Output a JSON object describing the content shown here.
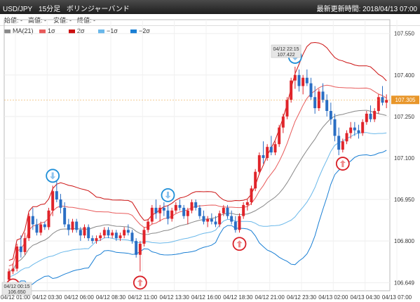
{
  "title": {
    "symbol": "USD/JPY",
    "timeframe": "15分足",
    "indicator": "ボリンジャーバンド"
  },
  "last_update": "最新更新時間: 2018/04/13 07:00",
  "ohlc_labels": [
    "始値: -",
    "高値: -",
    "安値: -",
    "終値: -"
  ],
  "legend": [
    {
      "label": "MA(21)",
      "color": "#888888"
    },
    {
      "label": "1σ",
      "color": "#e85b5b"
    },
    {
      "label": "2σ",
      "color": "#cc1111"
    },
    {
      "label": "−1σ",
      "color": "#6ab8ea"
    },
    {
      "label": "−2σ",
      "color": "#1a7fd4"
    }
  ],
  "colors": {
    "up": "#e0242a",
    "down": "#2a6ec4",
    "ma": "#888888",
    "p1": "#e85b5b",
    "p2": "#cc1111",
    "m1": "#6ab8ea",
    "m2": "#1a7fd4",
    "price_tag": "#e8962a"
  },
  "current_price": "107.305",
  "callouts": [
    {
      "time": "04/12 00:15",
      "price": "106.650"
    },
    {
      "time": "04/12 22:15",
      "price": "107.422"
    }
  ],
  "chart_data": {
    "type": "candlestick",
    "y_ticks": [
      "107.550",
      "107.400",
      "107.250",
      "107.100",
      "106.950",
      "106.800",
      "106.649"
    ],
    "y_tick_values": [
      107.55,
      107.4,
      107.25,
      107.1,
      106.95,
      106.8,
      106.649
    ],
    "x_ticks": [
      "04/12 01:00",
      "04/12 03:30",
      "04/12 06:00",
      "04/12 08:30",
      "04/12 11:00",
      "04/12 13:30",
      "04/12 16:00",
      "04/12 18:30",
      "04/12 21:00",
      "04/12 23:30",
      "04/13 02:00",
      "04/13 04:30",
      "04/13 07:00"
    ],
    "ylim": [
      106.62,
      107.6
    ],
    "candles": [
      [
        106.66,
        106.7,
        106.65,
        106.69
      ],
      [
        106.69,
        106.72,
        106.68,
        106.7
      ],
      [
        106.7,
        106.79,
        106.69,
        106.78
      ],
      [
        106.78,
        106.82,
        106.74,
        106.76
      ],
      [
        106.76,
        106.83,
        106.75,
        106.81
      ],
      [
        106.81,
        106.9,
        106.8,
        106.89
      ],
      [
        106.89,
        106.92,
        106.84,
        106.86
      ],
      [
        106.86,
        106.88,
        106.82,
        106.83
      ],
      [
        106.83,
        106.87,
        106.82,
        106.86
      ],
      [
        106.86,
        106.87,
        106.84,
        106.85
      ],
      [
        106.85,
        106.92,
        106.84,
        106.91
      ],
      [
        106.91,
        107.0,
        106.89,
        106.98
      ],
      [
        106.98,
        107.04,
        106.94,
        106.95
      ],
      [
        106.95,
        106.97,
        106.9,
        106.92
      ],
      [
        106.92,
        106.94,
        106.85,
        106.86
      ],
      [
        106.86,
        106.88,
        106.82,
        106.84
      ],
      [
        106.84,
        106.88,
        106.83,
        106.87
      ],
      [
        106.87,
        106.88,
        106.83,
        106.84
      ],
      [
        106.84,
        106.85,
        106.8,
        106.82
      ],
      [
        106.82,
        106.86,
        106.81,
        106.85
      ],
      [
        106.85,
        106.86,
        106.8,
        106.81
      ],
      [
        106.81,
        106.82,
        106.79,
        106.8
      ],
      [
        106.8,
        106.82,
        106.79,
        106.81
      ],
      [
        106.81,
        106.83,
        106.8,
        106.82
      ],
      [
        106.82,
        106.85,
        106.81,
        106.84
      ],
      [
        106.84,
        106.85,
        106.81,
        106.82
      ],
      [
        106.82,
        106.84,
        106.81,
        106.83
      ],
      [
        106.83,
        106.84,
        106.8,
        106.81
      ],
      [
        106.81,
        106.83,
        106.8,
        106.82
      ],
      [
        106.82,
        106.85,
        106.81,
        106.84
      ],
      [
        106.84,
        106.86,
        106.82,
        106.83
      ],
      [
        106.83,
        106.84,
        106.79,
        106.8
      ],
      [
        106.8,
        106.81,
        106.74,
        106.75
      ],
      [
        106.75,
        106.8,
        106.69,
        106.79
      ],
      [
        106.79,
        106.85,
        106.78,
        106.84
      ],
      [
        106.84,
        106.88,
        106.83,
        106.87
      ],
      [
        106.87,
        106.93,
        106.86,
        106.92
      ],
      [
        106.92,
        106.95,
        106.88,
        106.9
      ],
      [
        106.9,
        106.93,
        106.87,
        106.92
      ],
      [
        106.92,
        106.94,
        106.89,
        106.91
      ],
      [
        106.91,
        106.93,
        106.86,
        106.88
      ],
      [
        106.88,
        106.92,
        106.87,
        106.91
      ],
      [
        106.91,
        106.94,
        106.9,
        106.93
      ],
      [
        106.93,
        106.95,
        106.91,
        106.92
      ],
      [
        106.92,
        106.93,
        106.88,
        106.89
      ],
      [
        106.89,
        106.92,
        106.86,
        106.91
      ],
      [
        106.91,
        106.95,
        106.9,
        106.94
      ],
      [
        106.94,
        106.95,
        106.91,
        106.92
      ],
      [
        106.92,
        106.93,
        106.88,
        106.89
      ],
      [
        106.89,
        106.91,
        106.86,
        106.87
      ],
      [
        106.87,
        106.89,
        106.85,
        106.88
      ],
      [
        106.88,
        106.9,
        106.86,
        106.87
      ],
      [
        106.87,
        106.89,
        106.85,
        106.86
      ],
      [
        106.86,
        106.91,
        106.85,
        106.9
      ],
      [
        106.9,
        106.93,
        106.89,
        106.92
      ],
      [
        106.92,
        106.93,
        106.88,
        106.89
      ],
      [
        106.89,
        106.91,
        106.86,
        106.87
      ],
      [
        106.87,
        106.89,
        106.83,
        106.84
      ],
      [
        106.84,
        106.9,
        106.83,
        106.89
      ],
      [
        106.89,
        106.94,
        106.88,
        106.93
      ],
      [
        106.93,
        106.95,
        106.91,
        106.94
      ],
      [
        106.94,
        107.0,
        106.93,
        106.99
      ],
      [
        106.99,
        107.06,
        106.98,
        107.05
      ],
      [
        107.05,
        107.12,
        107.04,
        107.11
      ],
      [
        107.11,
        107.16,
        107.08,
        107.1
      ],
      [
        107.1,
        107.15,
        107.09,
        107.14
      ],
      [
        107.14,
        107.18,
        107.11,
        107.12
      ],
      [
        107.12,
        107.16,
        107.11,
        107.15
      ],
      [
        107.15,
        107.22,
        107.14,
        107.21
      ],
      [
        107.21,
        107.26,
        107.19,
        107.25
      ],
      [
        107.25,
        107.32,
        107.24,
        107.31
      ],
      [
        107.31,
        107.39,
        107.3,
        107.38
      ],
      [
        107.38,
        107.43,
        107.35,
        107.4
      ],
      [
        107.4,
        107.42,
        107.34,
        107.36
      ],
      [
        107.36,
        107.4,
        107.33,
        107.39
      ],
      [
        107.39,
        107.42,
        107.36,
        107.37
      ],
      [
        107.37,
        107.39,
        107.31,
        107.32
      ],
      [
        107.32,
        107.36,
        107.26,
        107.28
      ],
      [
        107.28,
        107.35,
        107.27,
        107.34
      ],
      [
        107.34,
        107.37,
        107.3,
        107.31
      ],
      [
        107.31,
        107.33,
        107.25,
        107.27
      ],
      [
        107.27,
        107.3,
        107.22,
        107.24
      ],
      [
        107.24,
        107.26,
        107.16,
        107.18
      ],
      [
        107.18,
        107.21,
        107.11,
        107.13
      ],
      [
        107.13,
        107.17,
        107.12,
        107.16
      ],
      [
        107.16,
        107.2,
        107.15,
        107.19
      ],
      [
        107.19,
        107.23,
        107.17,
        107.21
      ],
      [
        107.21,
        107.23,
        107.18,
        107.2
      ],
      [
        107.2,
        107.22,
        107.17,
        107.19
      ],
      [
        107.19,
        107.24,
        107.18,
        107.23
      ],
      [
        107.23,
        107.27,
        107.22,
        107.26
      ],
      [
        107.26,
        107.29,
        107.23,
        107.24
      ],
      [
        107.24,
        107.28,
        107.23,
        107.27
      ],
      [
        107.27,
        107.33,
        107.26,
        107.32
      ],
      [
        107.32,
        107.36,
        107.29,
        107.3
      ],
      [
        107.3,
        107.33,
        107.28,
        107.31
      ]
    ]
  },
  "markers": [
    {
      "name": "up-arrow-1",
      "idx": 1,
      "kind": "buy"
    },
    {
      "name": "down-arrow-1",
      "idx": 11,
      "kind": "sell"
    },
    {
      "name": "up-arrow-2",
      "idx": 33,
      "kind": "buy"
    },
    {
      "name": "down-arrow-2",
      "idx": 40,
      "kind": "sell"
    },
    {
      "name": "up-arrow-3",
      "idx": 58,
      "kind": "buy"
    },
    {
      "name": "down-arrow-3",
      "idx": 72,
      "kind": "sell"
    },
    {
      "name": "up-arrow-4",
      "idx": 84,
      "kind": "buy"
    }
  ]
}
